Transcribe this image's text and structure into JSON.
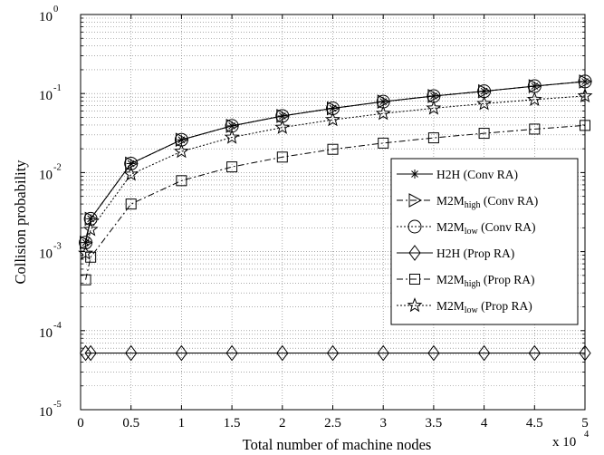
{
  "chart_data": {
    "type": "line",
    "xlabel": "Total number of machine nodes",
    "ylabel": "Collision probability",
    "x_multiplier_label": "x 10",
    "x_multiplier_exponent": "4",
    "xlim": [
      0,
      5
    ],
    "ylim_log10": [
      -5,
      0
    ],
    "yscale": "log",
    "grid": "dotted, major and minor",
    "legend_position": "right-center",
    "x_ticks": [
      "0",
      "0.5",
      "1",
      "1.5",
      "2",
      "2.5",
      "3",
      "3.5",
      "4",
      "4.5",
      "5"
    ],
    "y_ticks": [
      {
        "base": "10",
        "exp": "0",
        "value": 1
      },
      {
        "base": "10",
        "exp": "-1",
        "value": 0.1
      },
      {
        "base": "10",
        "exp": "-2",
        "value": 0.01
      },
      {
        "base": "10",
        "exp": "-3",
        "value": 0.001
      },
      {
        "base": "10",
        "exp": "-4",
        "value": 0.0001
      },
      {
        "base": "10",
        "exp": "-5",
        "value": 1e-05
      }
    ],
    "series": [
      {
        "name": "H2H (Conv RA)",
        "name_base": "H2H",
        "name_sub": "",
        "name_suffix": " (Conv RA)",
        "marker": "asterisk",
        "dash": "solid",
        "x": [
          0.05,
          0.1,
          0.5,
          1,
          1.5,
          2,
          2.5,
          3,
          3.5,
          4,
          4.5,
          5
        ],
        "y": [
          0.0013,
          0.0026,
          0.013,
          0.026,
          0.039,
          0.052,
          0.065,
          0.079,
          0.093,
          0.107,
          0.124,
          0.142
        ]
      },
      {
        "name": "M2Mhigh (Conv RA)",
        "name_base": "M2M",
        "name_sub": "high",
        "name_suffix": " (Conv RA)",
        "marker": "triangle-right",
        "dash": "dashdot",
        "x": [
          0.05,
          0.1,
          0.5,
          1,
          1.5,
          2,
          2.5,
          3,
          3.5,
          4,
          4.5,
          5
        ],
        "y": [
          0.0013,
          0.0026,
          0.013,
          0.026,
          0.039,
          0.052,
          0.065,
          0.079,
          0.093,
          0.107,
          0.124,
          0.142
        ]
      },
      {
        "name": "M2Mlow (Conv RA)",
        "name_base": "M2M",
        "name_sub": "low",
        "name_suffix": " (Conv RA)",
        "marker": "circle",
        "dash": "dotted",
        "x": [
          0.05,
          0.1,
          0.5,
          1,
          1.5,
          2,
          2.5,
          3,
          3.5,
          4,
          4.5,
          5
        ],
        "y": [
          0.0013,
          0.0026,
          0.013,
          0.026,
          0.039,
          0.052,
          0.065,
          0.079,
          0.093,
          0.107,
          0.124,
          0.142
        ]
      },
      {
        "name": "H2H (Prop RA)",
        "name_base": "H2H",
        "name_sub": "",
        "name_suffix": " (Prop RA)",
        "marker": "diamond",
        "dash": "solid",
        "x": [
          0.05,
          0.1,
          0.5,
          1,
          1.5,
          2,
          2.5,
          3,
          3.5,
          4,
          4.5,
          5
        ],
        "y": [
          5.2e-05,
          5.2e-05,
          5.2e-05,
          5.2e-05,
          5.2e-05,
          5.2e-05,
          5.2e-05,
          5.2e-05,
          5.2e-05,
          5.2e-05,
          5.2e-05,
          5.2e-05
        ]
      },
      {
        "name": "M2Mhigh (Prop RA)",
        "name_base": "M2M",
        "name_sub": "high",
        "name_suffix": " (Prop RA)",
        "marker": "square",
        "dash": "dashdot",
        "x": [
          0.05,
          0.1,
          0.5,
          1,
          1.5,
          2,
          2.5,
          3,
          3.5,
          4,
          4.5,
          5
        ],
        "y": [
          0.00044,
          0.00085,
          0.004,
          0.0079,
          0.0118,
          0.0157,
          0.0197,
          0.0236,
          0.0275,
          0.0314,
          0.0355,
          0.0395
        ]
      },
      {
        "name": "M2Mlow (Prop RA)",
        "name_base": "M2M",
        "name_sub": "low",
        "name_suffix": " (Prop RA)",
        "marker": "star",
        "dash": "dotted",
        "x": [
          0.05,
          0.1,
          0.5,
          1,
          1.5,
          2,
          2.5,
          3,
          3.5,
          4,
          4.5,
          5
        ],
        "y": [
          0.00095,
          0.0019,
          0.0095,
          0.0185,
          0.0279,
          0.0372,
          0.0466,
          0.0559,
          0.0652,
          0.0745,
          0.0839,
          0.0932
        ]
      }
    ]
  }
}
